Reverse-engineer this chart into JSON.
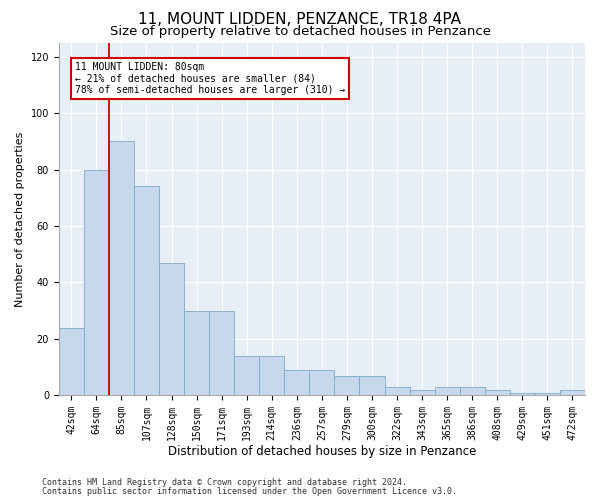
{
  "title": "11, MOUNT LIDDEN, PENZANCE, TR18 4PA",
  "subtitle": "Size of property relative to detached houses in Penzance",
  "xlabel": "Distribution of detached houses by size in Penzance",
  "ylabel": "Number of detached properties",
  "categories": [
    "42sqm",
    "64sqm",
    "85sqm",
    "107sqm",
    "128sqm",
    "150sqm",
    "171sqm",
    "193sqm",
    "214sqm",
    "236sqm",
    "257sqm",
    "279sqm",
    "300sqm",
    "322sqm",
    "343sqm",
    "365sqm",
    "386sqm",
    "408sqm",
    "429sqm",
    "451sqm",
    "472sqm"
  ],
  "values": [
    24,
    80,
    90,
    74,
    47,
    30,
    30,
    14,
    14,
    9,
    9,
    7,
    7,
    3,
    2,
    3,
    3,
    2,
    1,
    1,
    2
  ],
  "bar_color": "#c8d8ec",
  "bar_edge_color": "#7aaac8",
  "red_line_x": 1.5,
  "annotation_line1": "11 MOUNT LIDDEN: 80sqm",
  "annotation_line2": "← 21% of detached houses are smaller (84)",
  "annotation_line3": "78% of semi-detached houses are larger (310) →",
  "annotation_box_facecolor": "#ffffff",
  "annotation_box_edgecolor": "#cc0000",
  "ylim": [
    0,
    125
  ],
  "yticks": [
    0,
    20,
    40,
    60,
    80,
    100,
    120
  ],
  "footnote1": "Contains HM Land Registry data © Crown copyright and database right 2024.",
  "footnote2": "Contains public sector information licensed under the Open Government Licence v3.0.",
  "plot_bgcolor": "#e8eef5",
  "fig_bgcolor": "#ffffff",
  "title_fontsize": 11,
  "subtitle_fontsize": 9.5,
  "xlabel_fontsize": 8.5,
  "ylabel_fontsize": 8,
  "tick_fontsize": 7,
  "annotation_fontsize": 7,
  "footnote_fontsize": 6
}
